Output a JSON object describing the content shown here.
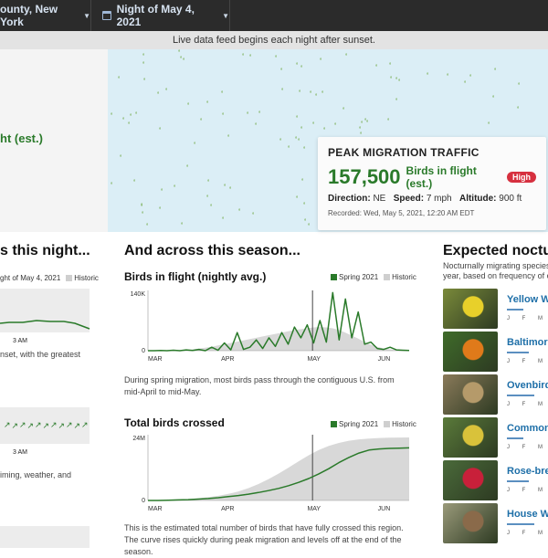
{
  "topbar": {
    "location": "ounty, New York",
    "date": "Night of May 4, 2021"
  },
  "notice": "Live data feed begins each night after sunset.",
  "hero": {
    "left_partial": "ht (est.)",
    "peak": {
      "title": "PEAK MIGRATION TRAFFIC",
      "value": "157,500",
      "unit": "Birds in flight (est.)",
      "badge": "High",
      "direction_label": "Direction:",
      "direction": "NE",
      "speed_label": "Speed:",
      "speed": "7 mph",
      "altitude_label": "Altitude:",
      "altitude": "900 ft",
      "recorded": "Recorded: Wed, May 5, 2021, 12:20 AM EDT"
    }
  },
  "left": {
    "heading": "s this night...",
    "legend1": "ght of May 4, 2021",
    "legend2": "Historic",
    "tick1": "3 AM",
    "note1": "nset, with the greatest",
    "tick2": "3 AM",
    "note2": "iming, weather, and"
  },
  "mid": {
    "heading": "And across this season...",
    "chart1_title": "Birds in flight (nightly avg.)",
    "chart1_note": "During spring migration, most birds pass through the contiguous U.S. from mid-April to mid-May.",
    "chart2_title": "Total birds crossed",
    "chart2_note": "This is the estimated total number of birds that have fully crossed this region. The curve rises quickly during peak migration and levels off at the end of the season.",
    "legend_spring": "Spring 2021",
    "legend_hist": "Historic"
  },
  "right": {
    "heading": "Expected noctur",
    "sub1": "Nocturnally migrating species",
    "sub2": "year, based on frequency of ob",
    "species": [
      {
        "name": "Yellow W",
        "months": "J F M"
      },
      {
        "name": "Baltimor",
        "months": "J F M"
      },
      {
        "name": "Ovenbird",
        "months": "J F M"
      },
      {
        "name": "Common",
        "months": "J F M"
      },
      {
        "name": "Rose-bre",
        "months": "J F M"
      },
      {
        "name": "House W",
        "months": "J F M"
      }
    ]
  },
  "chart_data": [
    {
      "type": "area",
      "title": "Birds in flight (nightly avg.)",
      "x_ticks": [
        "MAR",
        "APR",
        "MAY",
        "JUN"
      ],
      "y_ticks": [
        "0",
        "140K"
      ],
      "ylim": [
        0,
        140000
      ],
      "series": [
        {
          "name": "Spring 2021",
          "values": [
            0,
            0,
            500,
            0,
            1000,
            0,
            2000,
            500,
            3000,
            0,
            8000,
            1000,
            18000,
            2000,
            42000,
            3000,
            8000,
            25000,
            5000,
            30000,
            10000,
            42000,
            15000,
            55000,
            30000,
            60000,
            18000,
            70000,
            20000,
            135000,
            25000,
            120000,
            30000,
            90000,
            15000,
            20000,
            5000,
            3000,
            8000,
            2000,
            1000,
            500
          ]
        },
        {
          "name": "Historic",
          "values": [
            0,
            0,
            0,
            500,
            1000,
            1500,
            2000,
            3000,
            5000,
            7000,
            9000,
            12000,
            15000,
            18000,
            21000,
            24000,
            27000,
            30000,
            33000,
            36000,
            39000,
            42000,
            45000,
            48000,
            50000,
            52000,
            54000,
            55000,
            54000,
            52000,
            48000,
            42000,
            35000,
            28000,
            20000,
            14000,
            9000,
            5000,
            3000,
            1500,
            500,
            0
          ]
        }
      ]
    },
    {
      "type": "area",
      "title": "Total birds crossed",
      "x_ticks": [
        "MAR",
        "APR",
        "MAY",
        "JUN"
      ],
      "y_ticks": [
        "0",
        "24M"
      ],
      "ylim": [
        0,
        24000000
      ],
      "series": [
        {
          "name": "Spring 2021",
          "values": [
            0,
            0,
            100000,
            200000,
            300000,
            500000,
            700000,
            1000000,
            1400000,
            1800000,
            2300000,
            2900000,
            3600000,
            4400000,
            5400000,
            6600000,
            8000000,
            9700000,
            11600000,
            13800000,
            15700000,
            17300000,
            18400000,
            18800000,
            19000000,
            19100000,
            19200000
          ]
        },
        {
          "name": "Historic",
          "values": [
            0,
            50000,
            150000,
            300000,
            500000,
            800000,
            1200000,
            1700000,
            2400000,
            3300000,
            4500000,
            6000000,
            7800000,
            9800000,
            12000000,
            14300000,
            16500000,
            18400000,
            19900000,
            21000000,
            21800000,
            22300000,
            22600000,
            22800000,
            22900000,
            22950000,
            23000000
          ]
        }
      ]
    }
  ]
}
